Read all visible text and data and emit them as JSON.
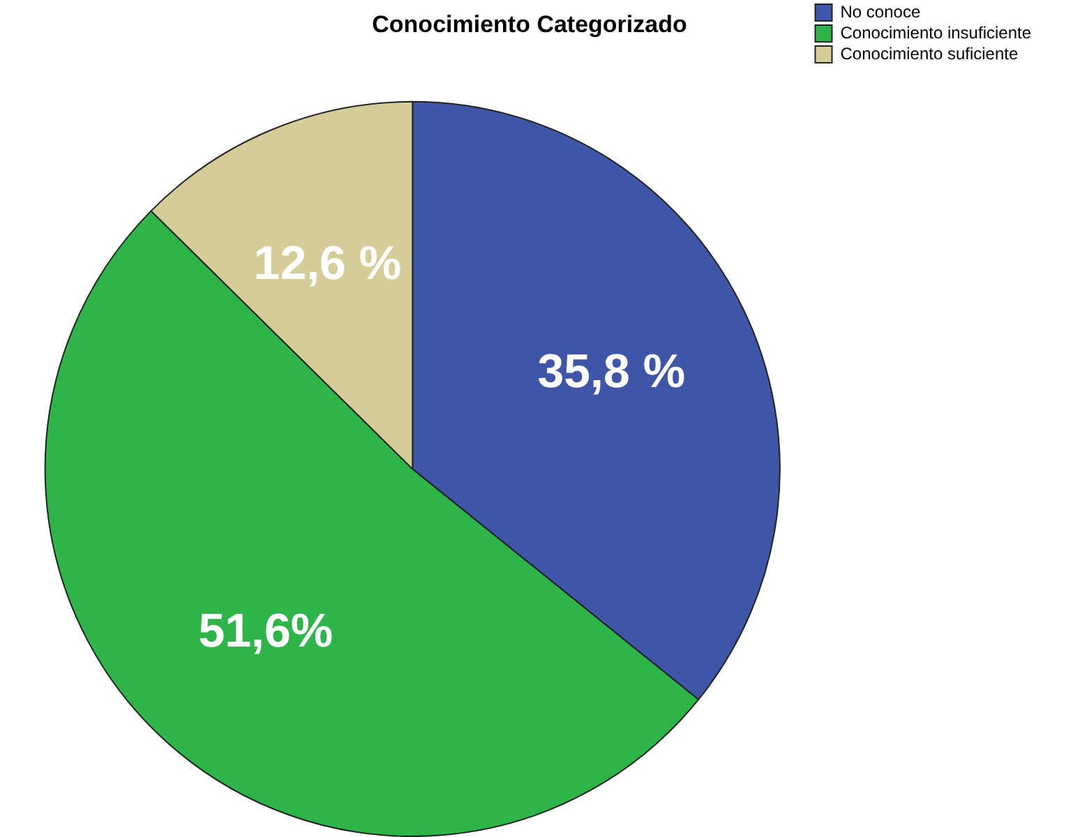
{
  "chart_data": {
    "type": "pie",
    "title": "Conocimiento Categorizado",
    "categories": [
      "No conoce",
      "Conocimiento insuficiente",
      "Conocimiento suficiente"
    ],
    "values": [
      35.8,
      51.6,
      12.6
    ],
    "colors": [
      "#3f56a8",
      "#2db54a",
      "#d4cd98"
    ],
    "value_labels": [
      "35,8 %",
      "51,6%",
      "12,6 %"
    ],
    "legend": "top right"
  }
}
